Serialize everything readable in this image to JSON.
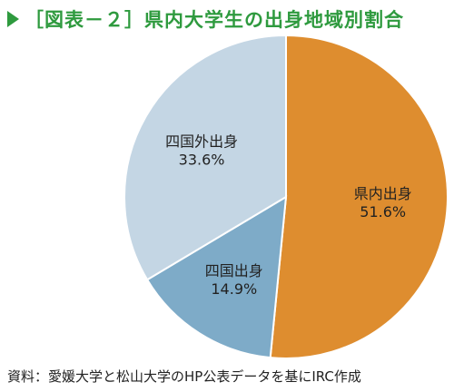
{
  "title": "［図表－２］県内大学生の出身地域別割合",
  "source": "資料：愛媛大学と松山大学のHP公表データを基にIRC作成",
  "chart_data": {
    "type": "pie",
    "title": "［図表－２］県内大学生の出身地域別割合",
    "slices": [
      {
        "label": "県内出身",
        "value": 51.6,
        "display": "51.6%",
        "color": "#de8d2f"
      },
      {
        "label": "四国出身",
        "value": 14.9,
        "display": "14.9%",
        "color": "#7eabc8"
      },
      {
        "label": "四国外出身",
        "value": 33.6,
        "display": "33.6%",
        "color": "#c4d6e4"
      }
    ],
    "start": "12 o'clock",
    "direction": "clockwise"
  },
  "colors": {
    "title": "#2e9a3e",
    "edge": "#ffffff"
  }
}
